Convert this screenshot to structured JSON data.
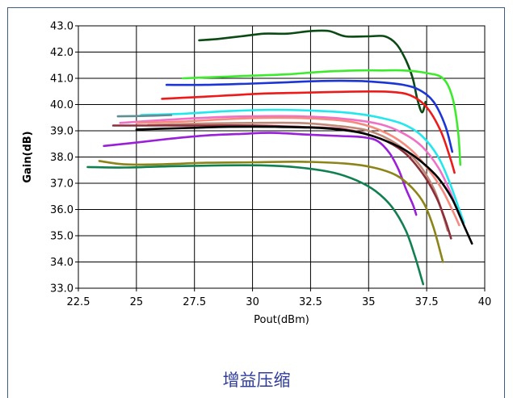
{
  "caption": "增益压缩",
  "chart_data": {
    "type": "line",
    "title": "",
    "xlabel": "Pout(dBm)",
    "ylabel": "Gain(dB)",
    "xlim": [
      22.5,
      40
    ],
    "ylim": [
      33.0,
      43.0
    ],
    "xticks": [
      "22.5",
      "25",
      "27.5",
      "30",
      "32.5",
      "35",
      "37.5",
      "40"
    ],
    "yticks": [
      "33.0",
      "34.0",
      "35.0",
      "36.0",
      "37.0",
      "38.0",
      "39.0",
      "40.0",
      "41.0",
      "42.0",
      "43.0"
    ],
    "grid": true,
    "series": [
      {
        "color": "#0b4a14",
        "points": [
          [
            27.7,
            42.45
          ],
          [
            28.5,
            42.5
          ],
          [
            29.5,
            42.6
          ],
          [
            30.5,
            42.7
          ],
          [
            31.5,
            42.7
          ],
          [
            32.5,
            42.8
          ],
          [
            33.3,
            42.8
          ],
          [
            34,
            42.6
          ],
          [
            35,
            42.6
          ],
          [
            35.7,
            42.6
          ],
          [
            36.2,
            42.3
          ],
          [
            36.6,
            41.7
          ],
          [
            36.9,
            41.0
          ],
          [
            37.1,
            40.2
          ],
          [
            37.3,
            39.7
          ],
          [
            37.45,
            40.1
          ]
        ]
      },
      {
        "color": "#3cec2c",
        "points": [
          [
            27.0,
            41.0
          ],
          [
            28.5,
            41.05
          ],
          [
            30,
            41.1
          ],
          [
            31.5,
            41.15
          ],
          [
            33,
            41.25
          ],
          [
            34.5,
            41.3
          ],
          [
            35.5,
            41.3
          ],
          [
            36.5,
            41.3
          ],
          [
            37.5,
            41.2
          ],
          [
            38.2,
            41.0
          ],
          [
            38.6,
            40.3
          ],
          [
            38.85,
            39.0
          ],
          [
            38.95,
            37.7
          ]
        ]
      },
      {
        "color": "#1c35d6",
        "points": [
          [
            26.3,
            40.75
          ],
          [
            28,
            40.75
          ],
          [
            30,
            40.8
          ],
          [
            31.5,
            40.85
          ],
          [
            33,
            40.9
          ],
          [
            34.5,
            40.9
          ],
          [
            35.5,
            40.85
          ],
          [
            36.5,
            40.75
          ],
          [
            37.2,
            40.55
          ],
          [
            37.8,
            40.1
          ],
          [
            38.3,
            39.2
          ],
          [
            38.6,
            38.2
          ]
        ]
      },
      {
        "color": "#ee1a1a",
        "points": [
          [
            26.1,
            40.22
          ],
          [
            27.5,
            40.28
          ],
          [
            29,
            40.35
          ],
          [
            30.5,
            40.42
          ],
          [
            32,
            40.45
          ],
          [
            33.5,
            40.48
          ],
          [
            35,
            40.5
          ],
          [
            36,
            40.48
          ],
          [
            36.8,
            40.35
          ],
          [
            37.5,
            39.9
          ],
          [
            38.1,
            39.0
          ],
          [
            38.5,
            38.0
          ],
          [
            38.7,
            37.4
          ]
        ]
      },
      {
        "color": "#22e8ee",
        "points": [
          [
            25.2,
            39.6
          ],
          [
            27,
            39.65
          ],
          [
            29,
            39.75
          ],
          [
            31,
            39.8
          ],
          [
            33,
            39.75
          ],
          [
            34.5,
            39.65
          ],
          [
            35.5,
            39.5
          ],
          [
            36.5,
            39.25
          ],
          [
            37.3,
            38.8
          ],
          [
            38,
            38.0
          ],
          [
            38.5,
            37.0
          ],
          [
            38.9,
            36.0
          ],
          [
            39.1,
            35.5
          ]
        ]
      },
      {
        "color": "#5f8f96",
        "points": [
          [
            24.2,
            39.55
          ],
          [
            25.5,
            39.57
          ],
          [
            26.5,
            39.6
          ]
        ]
      },
      {
        "color": "#f070c8",
        "points": [
          [
            24.3,
            39.3
          ],
          [
            26,
            39.4
          ],
          [
            28,
            39.5
          ],
          [
            30,
            39.55
          ],
          [
            32,
            39.55
          ],
          [
            34,
            39.45
          ],
          [
            35.5,
            39.25
          ],
          [
            36.5,
            38.9
          ],
          [
            37.3,
            38.4
          ],
          [
            38,
            37.6
          ],
          [
            38.5,
            36.7
          ],
          [
            38.8,
            36.0
          ],
          [
            39.0,
            35.6
          ]
        ]
      },
      {
        "color": "#f58b7e",
        "points": [
          [
            25.0,
            39.3
          ],
          [
            27,
            39.35
          ],
          [
            29,
            39.45
          ],
          [
            31,
            39.5
          ],
          [
            33,
            39.45
          ],
          [
            34.5,
            39.3
          ],
          [
            35.8,
            38.9
          ],
          [
            36.8,
            38.3
          ],
          [
            37.6,
            37.5
          ],
          [
            38.2,
            36.7
          ],
          [
            38.7,
            35.8
          ],
          [
            38.9,
            35.4
          ]
        ]
      },
      {
        "color": "#c08878",
        "points": [
          [
            25.5,
            39.22
          ],
          [
            28,
            39.28
          ],
          [
            30,
            39.3
          ],
          [
            32,
            39.3
          ],
          [
            33.5,
            39.2
          ],
          [
            35,
            39.0
          ],
          [
            36.2,
            38.5
          ],
          [
            37.1,
            37.8
          ],
          [
            37.8,
            36.8
          ],
          [
            38.2,
            35.8
          ],
          [
            38.4,
            35.2
          ]
        ]
      },
      {
        "color": "#8b2f3a",
        "points": [
          [
            24.0,
            39.2
          ],
          [
            26,
            39.2
          ],
          [
            28,
            39.2
          ],
          [
            30,
            39.2
          ],
          [
            32,
            39.15
          ],
          [
            34,
            39.05
          ],
          [
            35.5,
            38.7
          ],
          [
            36.5,
            38.2
          ],
          [
            37.3,
            37.4
          ],
          [
            37.9,
            36.5
          ],
          [
            38.3,
            35.6
          ],
          [
            38.55,
            34.9
          ]
        ]
      },
      {
        "color": "#000000",
        "points": [
          [
            25.0,
            39.05
          ],
          [
            27,
            39.1
          ],
          [
            29,
            39.15
          ],
          [
            31,
            39.15
          ],
          [
            33,
            39.1
          ],
          [
            34.5,
            38.95
          ],
          [
            35.5,
            38.7
          ],
          [
            36.5,
            38.3
          ],
          [
            37.3,
            37.8
          ],
          [
            38,
            37.2
          ],
          [
            38.6,
            36.4
          ],
          [
            39.1,
            35.4
          ],
          [
            39.45,
            34.7
          ]
        ]
      },
      {
        "color": "#9a1fd8",
        "points": [
          [
            23.6,
            38.42
          ],
          [
            25,
            38.55
          ],
          [
            26.5,
            38.7
          ],
          [
            28,
            38.82
          ],
          [
            29.5,
            38.88
          ],
          [
            30.8,
            38.92
          ],
          [
            32.5,
            38.85
          ],
          [
            33.8,
            38.8
          ],
          [
            34.8,
            38.75
          ],
          [
            35.4,
            38.6
          ],
          [
            35.9,
            38.15
          ],
          [
            36.3,
            37.5
          ],
          [
            36.6,
            36.8
          ],
          [
            36.9,
            36.2
          ],
          [
            37.05,
            35.8
          ]
        ]
      },
      {
        "color": "#8c8418",
        "points": [
          [
            23.4,
            37.85
          ],
          [
            24.5,
            37.72
          ],
          [
            26,
            37.72
          ],
          [
            28,
            37.78
          ],
          [
            30,
            37.8
          ],
          [
            32,
            37.82
          ],
          [
            34,
            37.75
          ],
          [
            35.2,
            37.6
          ],
          [
            36.2,
            37.3
          ],
          [
            36.9,
            36.8
          ],
          [
            37.4,
            36.2
          ],
          [
            37.8,
            35.3
          ],
          [
            38.2,
            34.0
          ]
        ]
      },
      {
        "color": "#118050",
        "points": [
          [
            22.9,
            37.62
          ],
          [
            24.5,
            37.6
          ],
          [
            26.5,
            37.65
          ],
          [
            28.5,
            37.68
          ],
          [
            30.5,
            37.68
          ],
          [
            32,
            37.6
          ],
          [
            33.5,
            37.4
          ],
          [
            34.5,
            37.1
          ],
          [
            35.3,
            36.7
          ],
          [
            36,
            36.1
          ],
          [
            36.6,
            35.2
          ],
          [
            37.0,
            34.2
          ],
          [
            37.3,
            33.3
          ],
          [
            37.35,
            33.15
          ]
        ]
      }
    ]
  }
}
